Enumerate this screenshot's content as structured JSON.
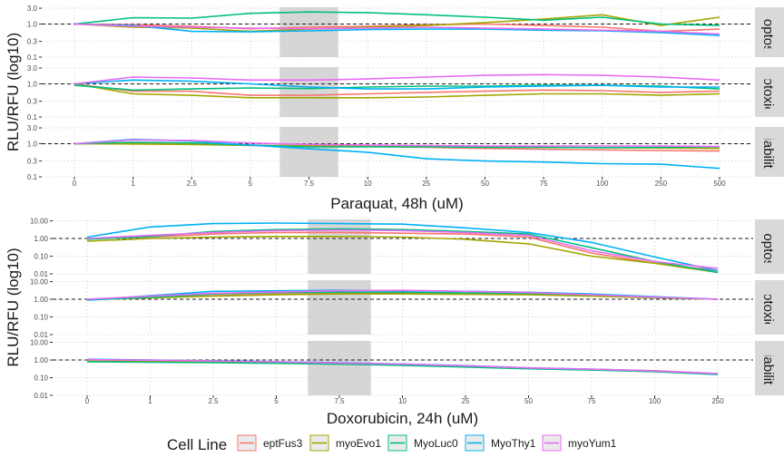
{
  "colors": {
    "eptFus3": "#F8766D",
    "myoEvo1": "#A3A500",
    "MyoLuc0": "#00BF7D",
    "MyoThy1": "#00B0F6",
    "myoYum1": "#E76BF3",
    "shade": "#c8c8c8",
    "grid": "#d9d9d9",
    "strip_bg": "#d9d9d9"
  },
  "legend": {
    "title": "Cell Line",
    "entries": [
      "eptFus3",
      "myoEvo1",
      "MyoLuc0",
      "MyoThy1",
      "myoYum1"
    ]
  },
  "chart_data": [
    {
      "type": "line",
      "xlabel": "Paraquat, 48h (uM)",
      "ylabel": "RLU/RFU (log10)",
      "x_categories": [
        "0",
        "1",
        "2.5",
        "5",
        "7.5",
        "10",
        "25",
        "50",
        "75",
        "100",
        "250",
        "500"
      ],
      "y_scale": "log10",
      "reference_line": 1.0,
      "shaded_x_range": [
        3.5,
        4.5
      ],
      "panels": [
        {
          "strip": "Apoptosis",
          "y_ticks": [
            "0.1",
            "0.3",
            "1.0",
            "3.0"
          ],
          "ylim": [
            0.1,
            3.2
          ],
          "series": [
            {
              "name": "eptFus3",
              "values": [
                1.0,
                0.95,
                0.85,
                0.72,
                0.8,
                0.85,
                0.95,
                1.0,
                0.9,
                0.8,
                0.6,
                0.7
              ]
            },
            {
              "name": "myoEvo1",
              "values": [
                1.0,
                0.8,
                0.75,
                0.6,
                0.7,
                0.8,
                0.9,
                1.1,
                1.4,
                1.9,
                0.9,
                1.6
              ]
            },
            {
              "name": "MyoLuc0",
              "values": [
                1.0,
                1.55,
                1.5,
                2.1,
                2.3,
                2.2,
                1.9,
                1.6,
                1.3,
                1.6,
                1.0,
                0.9
              ]
            },
            {
              "name": "MyoThy1",
              "values": [
                1.0,
                0.9,
                0.6,
                0.58,
                0.62,
                0.68,
                0.7,
                0.7,
                0.65,
                0.62,
                0.55,
                0.45
              ]
            },
            {
              "name": "myoYum1",
              "values": [
                1.0,
                0.85,
                0.8,
                0.75,
                0.72,
                0.75,
                0.8,
                0.75,
                0.7,
                0.65,
                0.6,
                0.5
              ]
            }
          ]
        },
        {
          "strip": "Cytotoxicity",
          "y_ticks": [
            "0.1",
            "0.3",
            "1.0",
            "3.0"
          ],
          "ylim": [
            0.1,
            3.2
          ],
          "series": [
            {
              "name": "eptFus3",
              "values": [
                1.0,
                0.6,
                0.6,
                0.45,
                0.45,
                0.5,
                0.55,
                0.6,
                0.65,
                0.62,
                0.55,
                0.6
              ]
            },
            {
              "name": "myoEvo1",
              "values": [
                1.0,
                0.5,
                0.45,
                0.38,
                0.38,
                0.38,
                0.4,
                0.45,
                0.5,
                0.5,
                0.45,
                0.5
              ]
            },
            {
              "name": "MyoLuc0",
              "values": [
                0.9,
                0.65,
                0.7,
                0.75,
                0.72,
                0.8,
                0.85,
                0.85,
                0.9,
                0.9,
                0.85,
                0.7
              ]
            },
            {
              "name": "MyoThy1",
              "values": [
                1.0,
                1.3,
                1.2,
                1.0,
                0.8,
                0.7,
                0.7,
                0.8,
                0.85,
                0.9,
                0.8,
                0.8
              ]
            },
            {
              "name": "myoYum1",
              "values": [
                1.0,
                1.6,
                1.5,
                1.3,
                1.3,
                1.4,
                1.6,
                1.8,
                1.9,
                1.8,
                1.6,
                1.3
              ]
            }
          ]
        },
        {
          "strip": "Viability",
          "y_ticks": [
            "0.1",
            "0.3",
            "1.0",
            "3.0"
          ],
          "ylim": [
            0.1,
            3.2
          ],
          "series": [
            {
              "name": "eptFus3",
              "values": [
                1.0,
                1.05,
                1.0,
                0.9,
                0.85,
                0.82,
                0.78,
                0.72,
                0.68,
                0.65,
                0.62,
                0.6
              ]
            },
            {
              "name": "myoEvo1",
              "values": [
                1.0,
                0.98,
                0.95,
                0.88,
                0.88,
                0.85,
                0.82,
                0.8,
                0.78,
                0.76,
                0.74,
                0.72
              ]
            },
            {
              "name": "MyoLuc0",
              "values": [
                1.0,
                1.1,
                1.05,
                0.9,
                0.8,
                0.8,
                0.8,
                0.78,
                0.78,
                0.76,
                0.78,
                0.8
              ]
            },
            {
              "name": "MyoThy1",
              "values": [
                1.0,
                1.35,
                1.2,
                0.9,
                0.7,
                0.55,
                0.35,
                0.3,
                0.28,
                0.25,
                0.24,
                0.18
              ]
            },
            {
              "name": "myoYum1",
              "values": [
                1.0,
                1.3,
                1.25,
                1.05,
                0.95,
                0.9,
                0.88,
                0.85,
                0.85,
                0.85,
                0.85,
                0.82
              ]
            }
          ]
        }
      ]
    },
    {
      "type": "line",
      "xlabel": "Doxorubicin, 24h (uM)",
      "ylabel": "RLU/RFU (log10)",
      "x_categories": [
        "0",
        "1",
        "2.5",
        "5",
        "7.5",
        "10",
        "25",
        "50",
        "75",
        "100",
        "250"
      ],
      "y_scale": "log10",
      "reference_line": 1.0,
      "shaded_x_range": [
        3.5,
        4.5
      ],
      "panels": [
        {
          "strip": "Apoptosis",
          "y_ticks": [
            "0.01",
            "0.10",
            "1.00",
            "10.00"
          ],
          "ylim": [
            0.01,
            12
          ],
          "series": [
            {
              "name": "eptFus3",
              "values": [
                1.0,
                1.2,
                1.8,
                2.2,
                2.2,
                2.0,
                1.8,
                1.2,
                0.15,
                0.04,
                0.015
              ]
            },
            {
              "name": "myoEvo1",
              "values": [
                0.7,
                1.0,
                1.2,
                1.3,
                1.3,
                1.2,
                0.9,
                0.5,
                0.1,
                0.04,
                0.012
              ]
            },
            {
              "name": "MyoLuc0",
              "values": [
                0.9,
                1.3,
                2.5,
                3.2,
                3.5,
                3.2,
                2.5,
                1.8,
                0.3,
                0.05,
                0.012
              ]
            },
            {
              "name": "MyoThy1",
              "values": [
                1.2,
                4.5,
                7.0,
                7.5,
                7.0,
                6.5,
                4.0,
                2.2,
                0.6,
                0.09,
                0.015
              ]
            },
            {
              "name": "myoYum1",
              "values": [
                1.0,
                1.5,
                2.2,
                2.8,
                3.0,
                2.8,
                2.2,
                1.5,
                0.2,
                0.05,
                0.02
              ]
            }
          ]
        },
        {
          "strip": "Cytotoxicity",
          "y_ticks": [
            "0.01",
            "0.10",
            "1.00",
            "10.00"
          ],
          "ylim": [
            0.01,
            12
          ],
          "series": [
            {
              "name": "eptFus3",
              "values": [
                1.0,
                1.3,
                1.6,
                2.0,
                2.2,
                2.3,
                2.1,
                2.0,
                1.8,
                1.3,
                1.0
              ]
            },
            {
              "name": "myoEvo1",
              "values": [
                0.95,
                1.2,
                1.5,
                1.8,
                2.0,
                2.0,
                1.9,
                1.8,
                1.5,
                1.2,
                1.0
              ]
            },
            {
              "name": "MyoLuc0",
              "values": [
                0.9,
                1.3,
                2.0,
                2.4,
                2.5,
                2.5,
                2.3,
                2.2,
                1.8,
                1.3,
                1.0
              ]
            },
            {
              "name": "MyoThy1",
              "values": [
                0.9,
                1.6,
                2.8,
                3.0,
                3.2,
                3.0,
                2.8,
                2.5,
                2.0,
                1.4,
                1.0
              ]
            },
            {
              "name": "myoYum1",
              "values": [
                1.0,
                1.5,
                2.2,
                2.6,
                3.0,
                3.2,
                2.8,
                2.4,
                1.8,
                1.3,
                1.0
              ]
            }
          ]
        },
        {
          "strip": "Viability",
          "y_ticks": [
            "0.01",
            "0.10",
            "1.00",
            "10.00"
          ],
          "ylim": [
            0.01,
            12
          ],
          "series": [
            {
              "name": "eptFus3",
              "values": [
                1.0,
                0.95,
                0.85,
                0.75,
                0.65,
                0.55,
                0.45,
                0.35,
                0.3,
                0.25,
                0.17
              ]
            },
            {
              "name": "myoEvo1",
              "values": [
                0.85,
                0.8,
                0.75,
                0.68,
                0.6,
                0.52,
                0.42,
                0.33,
                0.28,
                0.22,
                0.16
              ]
            },
            {
              "name": "MyoLuc0",
              "values": [
                0.8,
                0.75,
                0.7,
                0.65,
                0.58,
                0.5,
                0.4,
                0.32,
                0.27,
                0.22,
                0.15
              ]
            },
            {
              "name": "MyoThy1",
              "values": [
                1.1,
                1.0,
                0.9,
                0.8,
                0.7,
                0.6,
                0.48,
                0.36,
                0.3,
                0.24,
                0.16
              ]
            },
            {
              "name": "myoYum1",
              "values": [
                1.05,
                0.98,
                0.88,
                0.78,
                0.68,
                0.58,
                0.47,
                0.36,
                0.3,
                0.24,
                0.17
              ]
            }
          ]
        }
      ]
    }
  ]
}
